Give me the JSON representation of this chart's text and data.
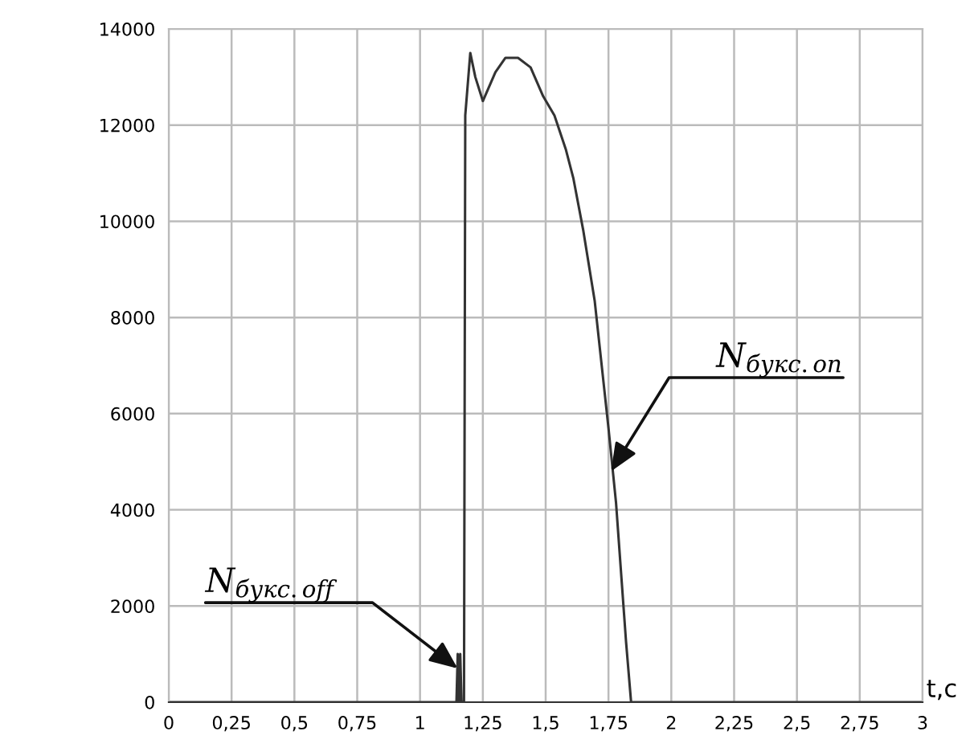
{
  "chart_data": {
    "type": "line",
    "xlabel": "t,c",
    "x": [
      0,
      1.13,
      1.145,
      1.15,
      1.155,
      1.16,
      1.165,
      1.175,
      1.18,
      1.2,
      1.22,
      1.25,
      1.3,
      1.34,
      1.39,
      1.44,
      1.49,
      1.535,
      1.58,
      1.61,
      1.65,
      1.695,
      1.75,
      1.78,
      1.82,
      1.84,
      3
    ],
    "series": [
      {
        "color": "#333333",
        "values": [
          0,
          0,
          0,
          1000,
          0,
          1000,
          0,
          0,
          12200,
          13500,
          13000,
          12500,
          13100,
          13400,
          13400,
          13200,
          12600,
          12200,
          11500,
          10900,
          9800,
          8350,
          5700,
          4150,
          1250,
          0,
          0
        ]
      }
    ],
    "xlim": [
      0,
      3
    ],
    "xticks": [
      0,
      {
        "value": 0.25,
        "label": "0,25"
      },
      {
        "value": 0.5,
        "label": "0,5"
      },
      {
        "value": 0.75,
        "label": "0,75"
      },
      1,
      {
        "value": 1.25,
        "label": "1,25"
      },
      {
        "value": 1.5,
        "label": "1,5"
      },
      {
        "value": 1.75,
        "label": "1,75"
      },
      2,
      {
        "value": 2.25,
        "label": "2,25"
      },
      {
        "value": 2.5,
        "label": "2,5"
      },
      {
        "value": 2.75,
        "label": "2,75"
      },
      3
    ],
    "ylim": [
      0,
      14000
    ],
    "yticks": [
      0,
      2000,
      4000,
      6000,
      8000,
      10000,
      12000,
      14000
    ],
    "grid": true,
    "marker": "none",
    "line_style": "solid",
    "annotations": [
      {
        "text": "N$_{букс.off}$",
        "x": 1.15,
        "y": 700
      },
      {
        "text": "N$_{букс.on}$",
        "x": 1.76,
        "y": 4800
      }
    ]
  }
}
